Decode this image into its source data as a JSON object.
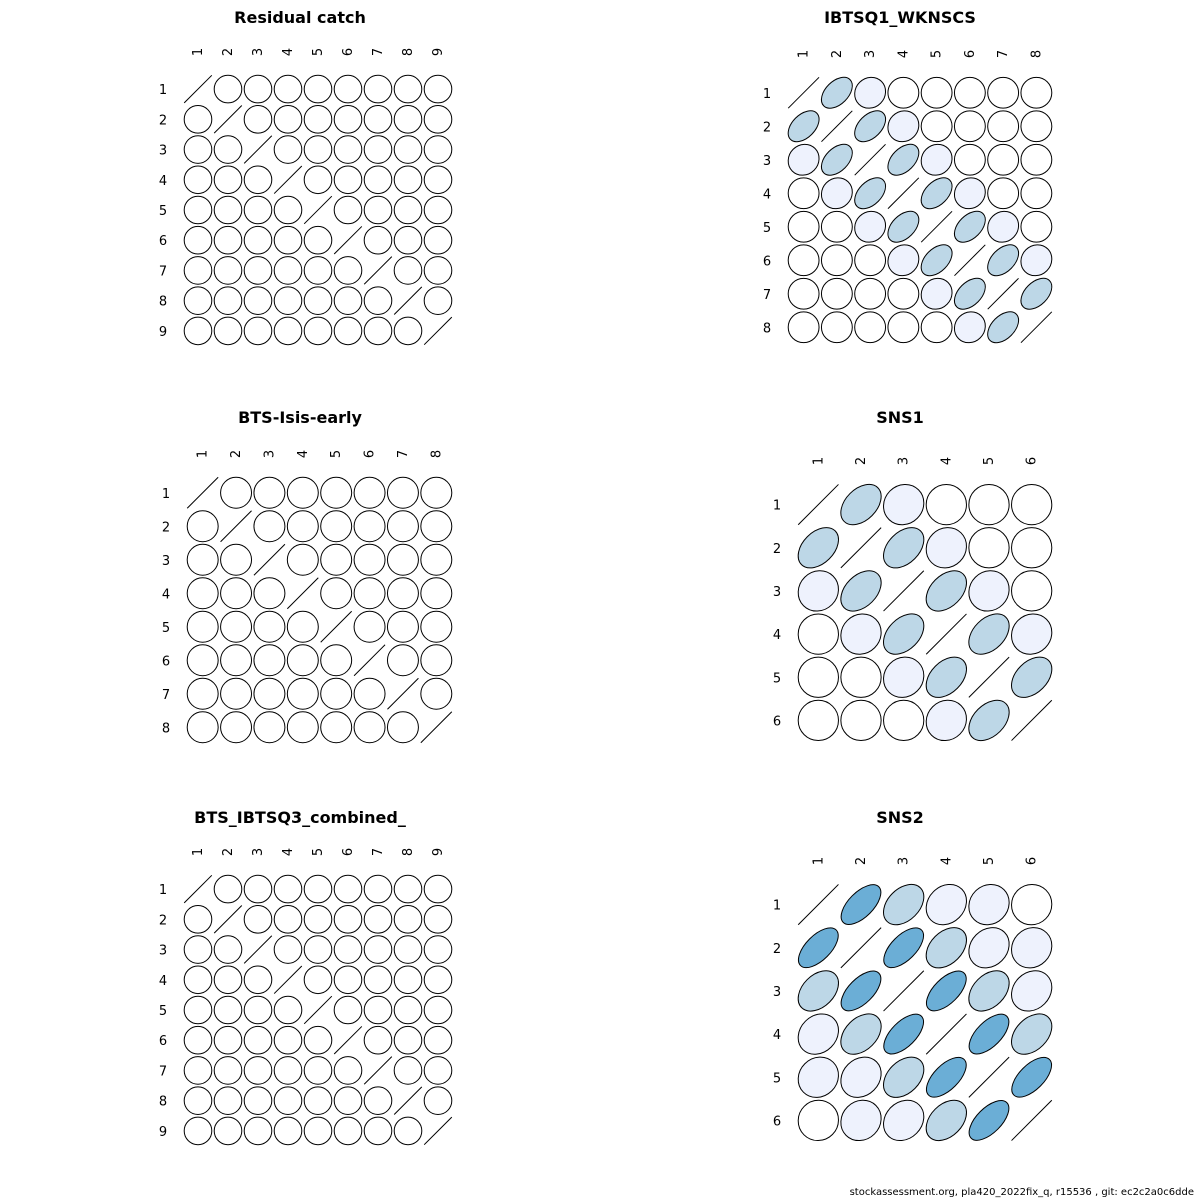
{
  "footer": "stockassessment.org, pla420_2022fix_q, r15536 , git: ec2c2a0c6dde",
  "colors": {
    "low": "#eef2fd",
    "mid": "#bdd7e7",
    "high": "#6baed6",
    "stroke": "#000000"
  },
  "chart_data": [
    {
      "type": "heatmap",
      "title": "Residual catch",
      "labels": [
        "1",
        "2",
        "3",
        "4",
        "5",
        "6",
        "7",
        "8",
        "9"
      ],
      "band": 0.3,
      "correlations": [
        [
          1,
          0,
          0,
          0,
          0,
          0,
          0,
          0,
          0
        ],
        [
          0,
          1,
          0,
          0,
          0,
          0,
          0,
          0,
          0
        ],
        [
          0,
          0,
          1,
          0,
          0,
          0,
          0,
          0,
          0
        ],
        [
          0,
          0,
          0,
          1,
          0,
          0,
          0,
          0,
          0
        ],
        [
          0,
          0,
          0,
          0,
          1,
          0,
          0,
          0,
          0
        ],
        [
          0,
          0,
          0,
          0,
          0,
          1,
          0,
          0,
          0
        ],
        [
          0,
          0,
          0,
          0,
          0,
          0,
          1,
          0,
          0
        ],
        [
          0,
          0,
          0,
          0,
          0,
          0,
          0,
          1,
          0
        ],
        [
          0,
          0,
          0,
          0,
          0,
          0,
          0,
          0,
          1
        ]
      ]
    },
    {
      "type": "heatmap",
      "title": "IBTSQ1_WKNSCS",
      "labels": [
        "1",
        "2",
        "3",
        "4",
        "5",
        "6",
        "7",
        "8"
      ],
      "band": 0.3,
      "correlations": [
        [
          1,
          0.45,
          0.08,
          0,
          0,
          0,
          0,
          0
        ],
        [
          0.45,
          1,
          0.45,
          0.08,
          0,
          0,
          0,
          0
        ],
        [
          0.08,
          0.45,
          1,
          0.45,
          0.08,
          0,
          0,
          0
        ],
        [
          0,
          0.08,
          0.45,
          1,
          0.45,
          0.08,
          0,
          0
        ],
        [
          0,
          0,
          0.08,
          0.45,
          1,
          0.45,
          0.08,
          0
        ],
        [
          0,
          0,
          0,
          0.08,
          0.45,
          1,
          0.45,
          0.08
        ],
        [
          0,
          0,
          0,
          0,
          0.08,
          0.45,
          1,
          0.45
        ],
        [
          0,
          0,
          0,
          0,
          0,
          0.08,
          0.45,
          1
        ]
      ]
    },
    {
      "type": "heatmap",
      "title": "BTS-Isis-early",
      "labels": [
        "1",
        "2",
        "3",
        "4",
        "5",
        "6",
        "7",
        "8"
      ],
      "band": 0.3,
      "correlations": [
        [
          1,
          0,
          0,
          0,
          0,
          0,
          0,
          0
        ],
        [
          0,
          1,
          0,
          0,
          0,
          0,
          0,
          0
        ],
        [
          0,
          0,
          1,
          0,
          0,
          0,
          0,
          0
        ],
        [
          0,
          0,
          0,
          1,
          0,
          0,
          0,
          0
        ],
        [
          0,
          0,
          0,
          0,
          1,
          0,
          0,
          0
        ],
        [
          0,
          0,
          0,
          0,
          0,
          1,
          0,
          0
        ],
        [
          0,
          0,
          0,
          0,
          0,
          0,
          1,
          0
        ],
        [
          0,
          0,
          0,
          0,
          0,
          0,
          0,
          1
        ]
      ]
    },
    {
      "type": "heatmap",
      "title": "SNS1",
      "labels": [
        "1",
        "2",
        "3",
        "4",
        "5",
        "6"
      ],
      "band": 0.3,
      "correlations": [
        [
          1,
          0.4,
          0.08,
          0,
          0,
          0
        ],
        [
          0.4,
          1,
          0.4,
          0.08,
          0,
          0
        ],
        [
          0.08,
          0.4,
          1,
          0.4,
          0.08,
          0
        ],
        [
          0,
          0.08,
          0.4,
          1,
          0.4,
          0.08
        ],
        [
          0,
          0,
          0.08,
          0.4,
          1,
          0.4
        ],
        [
          0,
          0,
          0,
          0.08,
          0.4,
          1
        ]
      ]
    },
    {
      "type": "heatmap",
      "title": "BTS_IBTSQ3_combined_",
      "labels": [
        "1",
        "2",
        "3",
        "4",
        "5",
        "6",
        "7",
        "8",
        "9"
      ],
      "band": 0.3,
      "correlations": [
        [
          1,
          0,
          0,
          0,
          0,
          0,
          0,
          0,
          0
        ],
        [
          0,
          1,
          0,
          0,
          0,
          0,
          0,
          0,
          0
        ],
        [
          0,
          0,
          1,
          0,
          0,
          0,
          0,
          0,
          0
        ],
        [
          0,
          0,
          0,
          1,
          0,
          0,
          0,
          0,
          0
        ],
        [
          0,
          0,
          0,
          0,
          1,
          0,
          0,
          0,
          0
        ],
        [
          0,
          0,
          0,
          0,
          0,
          1,
          0,
          0,
          0
        ],
        [
          0,
          0,
          0,
          0,
          0,
          0,
          1,
          0,
          0
        ],
        [
          0,
          0,
          0,
          0,
          0,
          0,
          0,
          1,
          0
        ],
        [
          0,
          0,
          0,
          0,
          0,
          0,
          0,
          0,
          1
        ]
      ]
    },
    {
      "type": "heatmap",
      "title": "SNS2",
      "labels": [
        "1",
        "2",
        "3",
        "4",
        "5",
        "6"
      ],
      "band": 0.3,
      "correlations": [
        [
          1,
          0.62,
          0.38,
          0.18,
          0.1,
          0.02
        ],
        [
          0.62,
          1,
          0.62,
          0.38,
          0.18,
          0.1
        ],
        [
          0.38,
          0.62,
          1,
          0.62,
          0.38,
          0.18
        ],
        [
          0.18,
          0.38,
          0.62,
          1,
          0.62,
          0.38
        ],
        [
          0.1,
          0.18,
          0.38,
          0.62,
          1,
          0.62
        ],
        [
          0.02,
          0.1,
          0.18,
          0.38,
          0.62,
          1
        ]
      ]
    }
  ]
}
